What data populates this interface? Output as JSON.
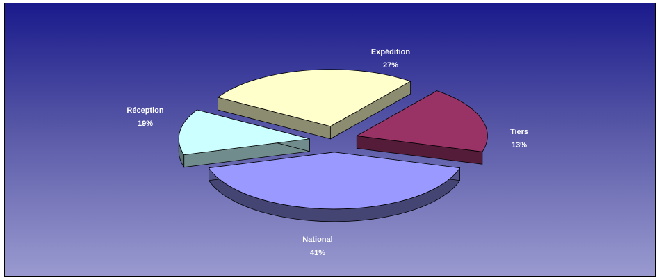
{
  "chart_data": {
    "type": "pie",
    "categories": [
      "National",
      "Tiers",
      "Expédition",
      "Réception"
    ],
    "values": [
      41,
      13,
      27,
      19
    ],
    "value_labels": [
      "41%",
      "13%",
      "27%",
      "19%"
    ],
    "colors": [
      "#9999ff",
      "#ccffff",
      "#ffffcc",
      "#993366"
    ],
    "title": "",
    "legend": "none",
    "exploded": true,
    "style": "3d"
  }
}
